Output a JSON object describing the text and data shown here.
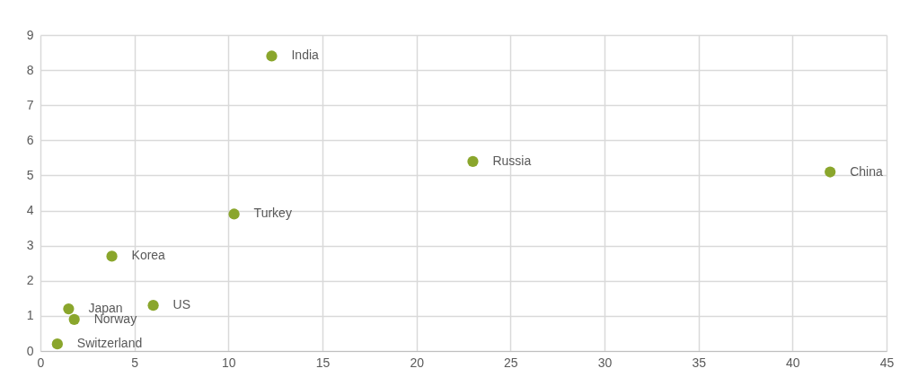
{
  "chart_data": {
    "type": "scatter",
    "series": [
      {
        "color": "#8aa62c",
        "x": [
          12.3,
          23,
          42,
          10.3,
          3.8,
          6,
          1.5,
          1.8,
          0.9
        ],
        "values": [
          8.4,
          5.4,
          5.1,
          3.9,
          2.7,
          1.3,
          1.2,
          0.9,
          0.2
        ]
      }
    ],
    "annotations": [
      {
        "text": "India",
        "x": 12.3,
        "y": 8.4
      },
      {
        "text": "Russia",
        "x": 23,
        "y": 5.4
      },
      {
        "text": "China",
        "x": 42,
        "y": 5.1
      },
      {
        "text": "Turkey",
        "x": 10.3,
        "y": 3.9
      },
      {
        "text": "Korea",
        "x": 3.8,
        "y": 2.7
      },
      {
        "text": "US",
        "x": 6,
        "y": 1.3
      },
      {
        "text": "Japan",
        "x": 1.5,
        "y": 1.2
      },
      {
        "text": "Norway",
        "x": 1.8,
        "y": 0.9
      },
      {
        "text": "Switzerland",
        "x": 0.9,
        "y": 0.2
      }
    ],
    "xlim": [
      0,
      45
    ],
    "xticks": [
      0,
      5,
      10,
      15,
      20,
      25,
      30,
      35,
      40,
      45
    ],
    "ylim": [
      0,
      9
    ],
    "yticks": [
      0,
      1,
      2,
      3,
      4,
      5,
      6,
      7,
      8,
      9
    ],
    "grid": true,
    "marker": "circle"
  }
}
